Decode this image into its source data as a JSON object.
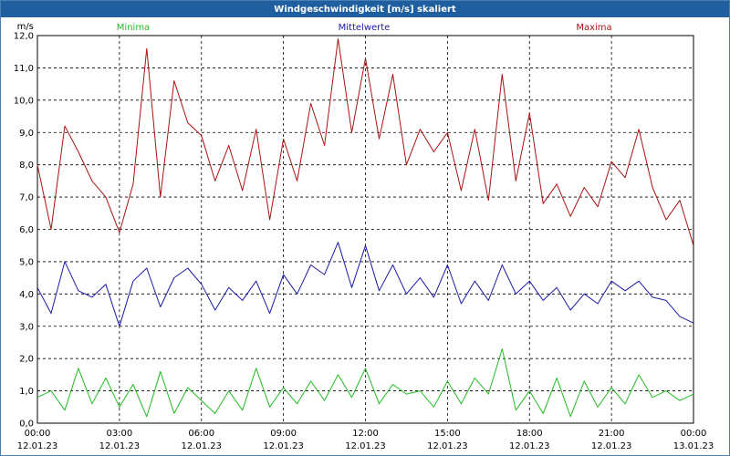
{
  "window": {
    "title": "Windgeschwindigkeit [m/s] skaliert"
  },
  "chart_data": {
    "type": "line",
    "title": "Windgeschwindigkeit [m/s] skaliert",
    "ylabel": "m/s",
    "ylim": [
      0,
      12
    ],
    "yticks": [
      "0,0",
      "1,0",
      "2,0",
      "3,0",
      "4,0",
      "5,0",
      "6,0",
      "7,0",
      "8,0",
      "9,0",
      "10,0",
      "11,0",
      "12,0"
    ],
    "xlim": [
      0,
      24
    ],
    "xticks": [
      {
        "time": "00:00",
        "date": "12.01.23"
      },
      {
        "time": "03:00",
        "date": "12.01.23"
      },
      {
        "time": "06:00",
        "date": "12.01.23"
      },
      {
        "time": "09:00",
        "date": "12.01.23"
      },
      {
        "time": "12:00",
        "date": "12.01.23"
      },
      {
        "time": "15:00",
        "date": "12.01.23"
      },
      {
        "time": "18:00",
        "date": "12.01.23"
      },
      {
        "time": "21:00",
        "date": "12.01.23"
      },
      {
        "time": "00:00",
        "date": "13.01.23"
      }
    ],
    "grid": true,
    "legend_position": "top",
    "series": [
      {
        "name": "Minima",
        "color": "#22bb22",
        "x": [
          0,
          0.5,
          1,
          1.5,
          2,
          2.5,
          3,
          3.5,
          4,
          4.5,
          5,
          5.5,
          6,
          6.5,
          7,
          7.5,
          8,
          8.5,
          9,
          9.5,
          10,
          10.5,
          11,
          11.5,
          12,
          12.5,
          13,
          13.5,
          14,
          14.5,
          15,
          15.5,
          16,
          16.5,
          17,
          17.5,
          18,
          18.5,
          19,
          19.5,
          20,
          20.5,
          21,
          21.5,
          22,
          22.5,
          23,
          23.5,
          24
        ],
        "values": [
          0.8,
          1.0,
          0.4,
          1.7,
          0.6,
          1.4,
          0.5,
          1.2,
          0.2,
          1.6,
          0.3,
          1.1,
          0.7,
          0.3,
          1.0,
          0.4,
          1.7,
          0.5,
          1.1,
          0.6,
          1.3,
          0.7,
          1.5,
          0.8,
          1.7,
          0.6,
          1.2,
          0.9,
          1.0,
          0.5,
          1.3,
          0.6,
          1.4,
          0.9,
          2.3,
          0.4,
          1.0,
          0.3,
          1.4,
          0.2,
          1.3,
          0.5,
          1.1,
          0.6,
          1.5,
          0.8,
          1.0,
          0.7,
          0.9
        ]
      },
      {
        "name": "Mittelwerte",
        "color": "#1a1aa8",
        "x": [
          0,
          0.5,
          1,
          1.5,
          2,
          2.5,
          3,
          3.5,
          4,
          4.5,
          5,
          5.5,
          6,
          6.5,
          7,
          7.5,
          8,
          8.5,
          9,
          9.5,
          10,
          10.5,
          11,
          11.5,
          12,
          12.5,
          13,
          13.5,
          14,
          14.5,
          15,
          15.5,
          16,
          16.5,
          17,
          17.5,
          18,
          18.5,
          19,
          19.5,
          20,
          20.5,
          21,
          21.5,
          22,
          22.5,
          23,
          23.5,
          24
        ],
        "values": [
          4.2,
          3.4,
          5.0,
          4.1,
          3.9,
          4.3,
          3.0,
          4.4,
          4.8,
          3.6,
          4.5,
          4.8,
          4.3,
          3.5,
          4.2,
          3.8,
          4.4,
          3.4,
          4.6,
          4.0,
          4.9,
          4.6,
          5.6,
          4.2,
          5.5,
          4.1,
          4.9,
          4.0,
          4.5,
          3.9,
          4.9,
          3.7,
          4.4,
          3.8,
          4.9,
          4.0,
          4.4,
          3.8,
          4.2,
          3.5,
          4.0,
          3.7,
          4.4,
          4.1,
          4.4,
          3.9,
          3.8,
          3.3,
          3.1
        ]
      },
      {
        "name": "Maxima",
        "color": "#aa1111",
        "x": [
          0,
          0.5,
          1,
          1.5,
          2,
          2.5,
          3,
          3.5,
          4,
          4.5,
          5,
          5.5,
          6,
          6.5,
          7,
          7.5,
          8,
          8.5,
          9,
          9.5,
          10,
          10.5,
          11,
          11.5,
          12,
          12.5,
          13,
          13.5,
          14,
          14.5,
          15,
          15.5,
          16,
          16.5,
          17,
          17.5,
          18,
          18.5,
          19,
          19.5,
          20,
          20.5,
          21,
          21.5,
          22,
          22.5,
          23,
          23.5,
          24
        ],
        "values": [
          8.0,
          6.0,
          9.2,
          8.4,
          7.5,
          7.0,
          5.9,
          7.4,
          11.6,
          7.0,
          10.6,
          9.3,
          8.9,
          7.5,
          8.6,
          7.2,
          9.1,
          6.3,
          8.8,
          7.5,
          9.9,
          8.6,
          11.9,
          9.0,
          11.3,
          8.8,
          10.8,
          8.0,
          9.1,
          8.4,
          9.0,
          7.2,
          9.1,
          6.9,
          10.8,
          7.5,
          9.6,
          6.8,
          7.4,
          6.4,
          7.3,
          6.7,
          8.1,
          7.6,
          9.1,
          7.3,
          6.3,
          6.9,
          5.5
        ]
      }
    ]
  }
}
